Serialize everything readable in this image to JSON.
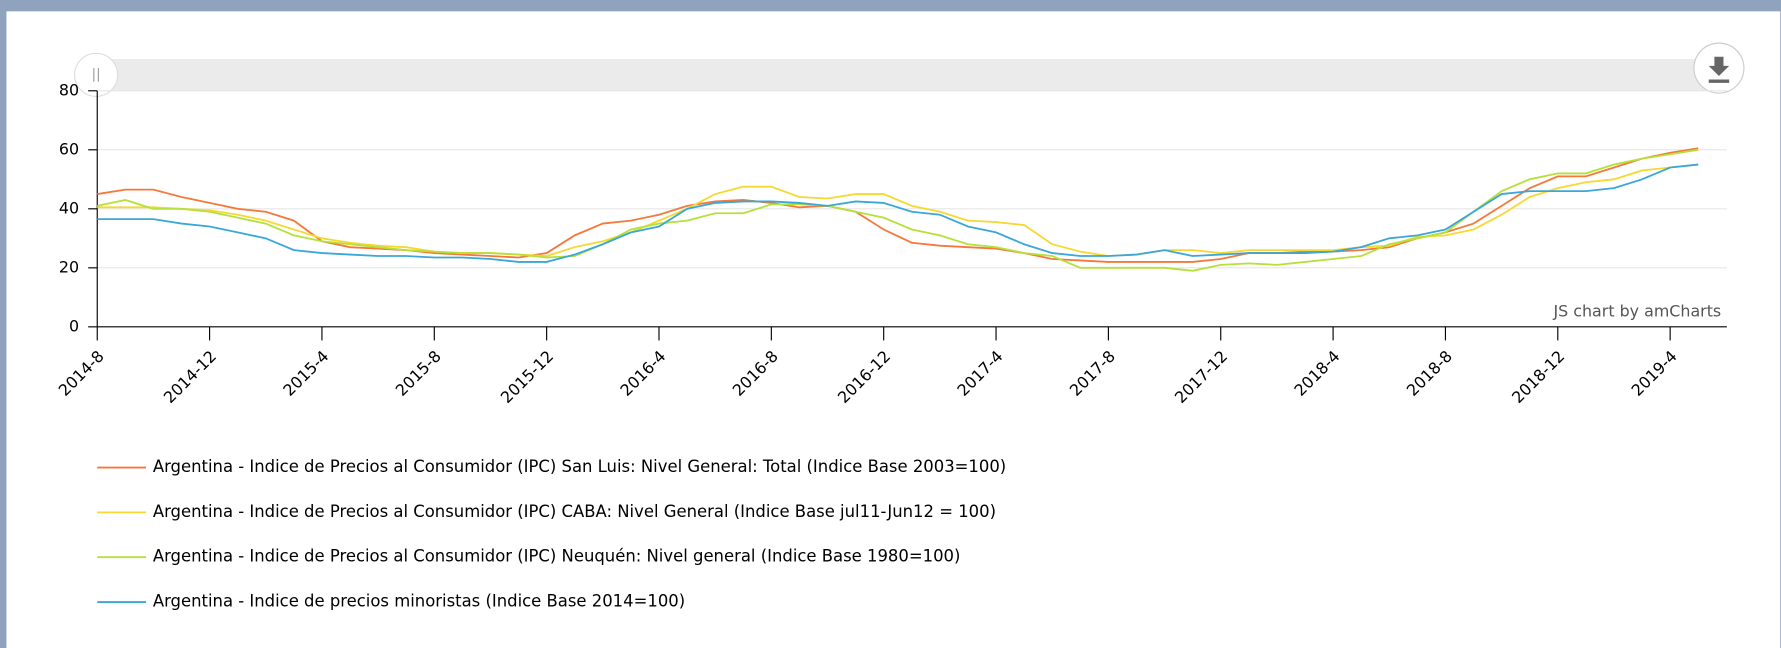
{
  "chart_data": {
    "type": "line",
    "credit": "JS chart by amCharts",
    "categories": [
      "2014-8",
      null,
      null,
      null,
      "2014-12",
      null,
      null,
      null,
      "2015-4",
      null,
      null,
      null,
      "2015-8",
      null,
      null,
      null,
      "2015-12",
      null,
      null,
      null,
      "2016-4",
      null,
      null,
      null,
      "2016-8",
      null,
      null,
      null,
      "2016-12",
      null,
      null,
      null,
      "2017-4",
      null,
      null,
      null,
      "2017-8",
      null,
      null,
      null,
      "2017-12",
      null,
      null,
      null,
      "2018-4",
      null,
      null,
      null,
      "2018-8",
      null,
      null,
      null,
      "2018-12",
      null,
      null,
      null,
      "2019-4",
      null
    ],
    "ylim": [
      0,
      80
    ],
    "yticks": [
      0,
      20,
      40,
      60,
      80
    ],
    "grid": true,
    "series": [
      {
        "name": "Argentina - Indice de Precios al Consumidor (IPC) San Luis: Nivel General: Total (Indice Base 2003=100)",
        "color": "#f4793a",
        "values": [
          45,
          46.5,
          46.5,
          44,
          42,
          40,
          39,
          36,
          29,
          27,
          26.5,
          26,
          25,
          24.5,
          24,
          23.5,
          25,
          31,
          35,
          36,
          38,
          41,
          42.5,
          43,
          42,
          40.5,
          41,
          39,
          33,
          28.5,
          27.5,
          27,
          26.5,
          25,
          23,
          22.5,
          22,
          22,
          22,
          22,
          23,
          25,
          25,
          25.5,
          25.5,
          26,
          27,
          30,
          32,
          35,
          41,
          47,
          51,
          51,
          54,
          57,
          59,
          60.5
        ]
      },
      {
        "name": "Argentina - Indice de Precios al Consumidor (IPC) CABA: Nivel General (Indice Base jul11-Jun12 = 100)",
        "color": "#f5d932",
        "values": [
          40.5,
          40.5,
          40.5,
          40,
          39.5,
          38,
          36,
          33,
          30,
          28.5,
          27.5,
          27,
          25.5,
          25,
          25,
          24.5,
          24,
          27,
          29,
          32,
          36,
          40,
          45,
          47.5,
          47.5,
          44,
          43.5,
          45,
          45,
          41,
          39,
          36,
          35.5,
          34.5,
          28,
          25.5,
          24,
          24.5,
          26,
          26,
          25,
          26,
          26,
          26,
          26,
          27,
          27.5,
          30.5,
          31,
          33,
          38,
          44,
          47,
          49,
          50,
          53,
          54,
          55
        ]
      },
      {
        "name": "Argentina - Indice de Precios al Consumidor (IPC) Neuquén: Nivel general (Indice Base 1980=100)",
        "color": "#b6e03a",
        "values": [
          41,
          43,
          40,
          40,
          39,
          37,
          35,
          31,
          29,
          28,
          27,
          26,
          25.5,
          25,
          25,
          24.5,
          23.5,
          24,
          28,
          33,
          35,
          36,
          38.5,
          38.5,
          41.5,
          41.5,
          41,
          39,
          37,
          33,
          31,
          28,
          27,
          25,
          24,
          20,
          20,
          20,
          20,
          19,
          21,
          21.5,
          21,
          22,
          23,
          24,
          28,
          30,
          32,
          39,
          46,
          50,
          52,
          52,
          55,
          57,
          58.5,
          60
        ]
      },
      {
        "name": "Argentina - Indice de precios minoristas (Indice Base 2014=100)",
        "color": "#3aa7d8",
        "values": [
          36.5,
          36.5,
          36.5,
          35,
          34,
          32,
          30,
          26,
          25,
          24.5,
          24,
          24,
          23.5,
          23.5,
          23,
          22,
          22,
          24.5,
          28,
          32,
          34,
          40,
          42,
          42.5,
          42.5,
          42,
          41,
          42.5,
          42,
          39,
          38,
          34,
          32,
          28,
          25,
          24,
          24,
          24.5,
          26,
          24,
          24.5,
          25,
          25,
          25,
          25.5,
          27,
          30,
          31,
          33,
          39,
          45,
          46,
          46,
          46,
          47,
          50,
          54,
          55
        ]
      }
    ]
  }
}
